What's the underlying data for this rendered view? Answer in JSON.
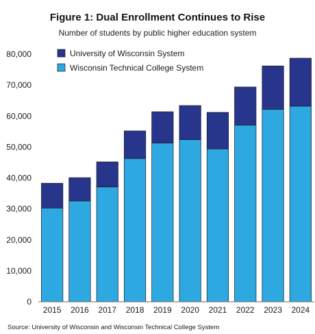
{
  "chart_data": {
    "type": "bar",
    "stacked": true,
    "title": "Figure 1: Dual Enrollment Continues to Rise",
    "subtitle": "Number of students by public higher education system",
    "xlabel": "",
    "ylabel": "",
    "categories": [
      "2015",
      "2016",
      "2017",
      "2018",
      "2019",
      "2020",
      "2021",
      "2022",
      "2023",
      "2024"
    ],
    "series": [
      {
        "name": "Wisconsin Technical College System",
        "color": "#2ea8e0",
        "values": [
          30300,
          32600,
          37100,
          46300,
          51300,
          52400,
          49400,
          57100,
          62200,
          63200
        ]
      },
      {
        "name": "University of Wisconsin System",
        "color": "#27358c",
        "values": [
          8000,
          7500,
          8100,
          8900,
          10100,
          11000,
          11800,
          12300,
          14000,
          15500
        ]
      }
    ],
    "ylim": [
      0,
      80000
    ],
    "yticks": [
      0,
      10000,
      20000,
      30000,
      40000,
      50000,
      60000,
      70000,
      80000
    ],
    "ytick_labels": [
      "0",
      "10,000",
      "20,000",
      "30,000",
      "40,000",
      "50,000",
      "60,000",
      "70,000",
      "80,000"
    ],
    "grid": false,
    "legend_placement": "top-left",
    "legend": [
      {
        "name": "University of Wisconsin System",
        "color": "#27358c"
      },
      {
        "name": "Wisconsin Technical College System",
        "color": "#2ea8e0"
      }
    ],
    "source": "Source: University of Wisconsin and Wisconsin Technical College System"
  }
}
